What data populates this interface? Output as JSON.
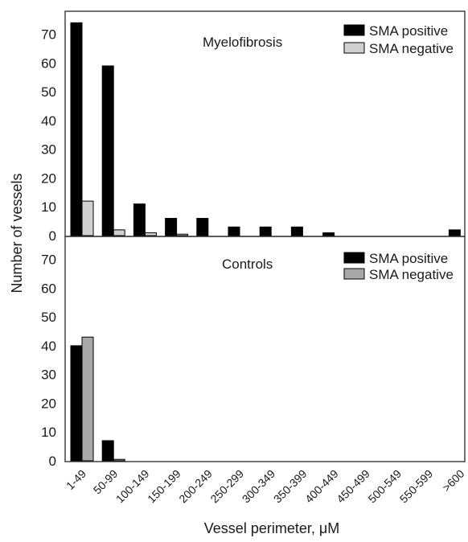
{
  "chart_data": [
    {
      "type": "bar",
      "title": "Myelofibrosis",
      "categories": [
        "1-49",
        "50-99",
        "100-149",
        "150-199",
        "200-249",
        "250-299",
        "300-349",
        "350-399",
        "400-449",
        "450-499",
        "500-549",
        "550-599",
        ">600"
      ],
      "series": [
        {
          "name": "SMA positive",
          "color": "#000000",
          "values": [
            74,
            59,
            11,
            6,
            6,
            3,
            3,
            3,
            1,
            0,
            0,
            0,
            2
          ]
        },
        {
          "name": "SMA negative",
          "color": "#d0d0d0",
          "values": [
            12,
            2,
            1,
            0.5,
            0,
            0,
            0,
            0,
            0,
            0,
            0,
            0,
            0
          ]
        }
      ],
      "yticks": [
        0,
        10,
        20,
        30,
        40,
        50,
        60,
        70
      ],
      "ylim": [
        0,
        78
      ],
      "legend": "top-right"
    },
    {
      "type": "bar",
      "title": "Controls",
      "categories": [
        "1-49",
        "50-99",
        "100-149",
        "150-199",
        "200-249",
        "250-299",
        "300-349",
        "350-399",
        "400-449",
        "450-499",
        "500-549",
        "550-599",
        ">600"
      ],
      "series": [
        {
          "name": "SMA positive",
          "color": "#000000",
          "values": [
            40,
            7,
            0,
            0,
            0,
            0,
            0,
            0,
            0,
            0,
            0,
            0,
            0
          ]
        },
        {
          "name": "SMA negative",
          "color": "#a8a8a8",
          "values": [
            43,
            0.5,
            0,
            0,
            0,
            0,
            0,
            0,
            0,
            0,
            0,
            0,
            0
          ]
        }
      ],
      "yticks": [
        0,
        10,
        20,
        30,
        40,
        50,
        60,
        70
      ],
      "ylim": [
        0,
        78
      ],
      "legend": "top-right"
    }
  ],
  "ylabel": "Number of vessels",
  "xlabel": "Vessel perimeter, μM"
}
